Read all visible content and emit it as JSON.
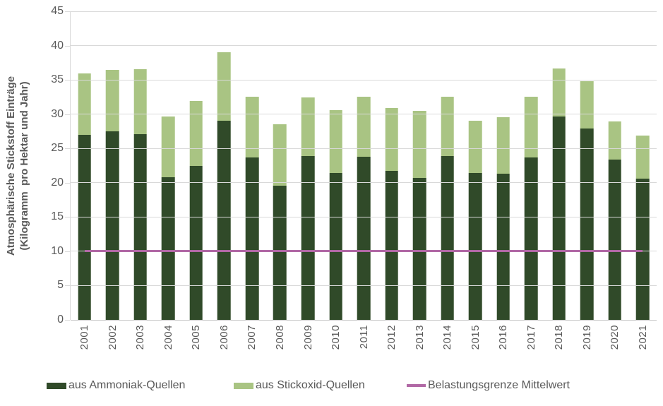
{
  "chart_data": {
    "type": "bar",
    "stacked": true,
    "title": "",
    "ylabel_line1": "Atmosphärische Stickstoff Einträge",
    "ylabel_line2": "(Kilogramm  pro Hektar und Jahr)",
    "xlabel": "",
    "ylim": [
      0,
      45
    ],
    "yticks": [
      0,
      5,
      10,
      15,
      20,
      25,
      30,
      35,
      40,
      45
    ],
    "grid": "horizontal",
    "legend_position": "bottom",
    "categories": [
      "2001",
      "2002",
      "2003",
      "2004",
      "2005",
      "2006",
      "2007",
      "2008",
      "2009",
      "2010",
      "2011",
      "2012",
      "2013",
      "2014",
      "2015",
      "2016",
      "2017",
      "2018",
      "2019",
      "2020",
      "2021"
    ],
    "series": [
      {
        "name": "aus Ammoniak-Quellen",
        "color": "#304a29",
        "values": [
          27.0,
          27.5,
          27.1,
          20.8,
          22.4,
          29.0,
          23.7,
          19.6,
          23.9,
          21.4,
          23.8,
          21.7,
          20.7,
          23.9,
          21.4,
          21.3,
          23.7,
          29.7,
          27.9,
          23.4,
          20.6
        ]
      },
      {
        "name": "aus Stickoxid-Quellen",
        "color": "#a9c483",
        "values": [
          8.9,
          9.0,
          9.5,
          8.9,
          9.5,
          10.0,
          8.8,
          8.9,
          8.5,
          9.2,
          8.7,
          9.2,
          9.8,
          8.6,
          7.6,
          8.3,
          8.8,
          7.0,
          6.9,
          5.5,
          6.3
        ]
      }
    ],
    "stack_totals": [
      35.9,
      36.5,
      36.6,
      29.7,
      31.9,
      39.0,
      32.5,
      28.5,
      32.4,
      30.6,
      32.5,
      30.9,
      30.5,
      32.5,
      29.0,
      29.6,
      32.5,
      36.7,
      34.8,
      28.9,
      26.9
    ],
    "reference_line": {
      "name": "Belastungsgrenze Mittelwert",
      "value": 10,
      "color": "#b168a5"
    }
  },
  "style_colors": {
    "grid": "#d9d9d9",
    "text": "#595959",
    "background": "#ffffff"
  }
}
